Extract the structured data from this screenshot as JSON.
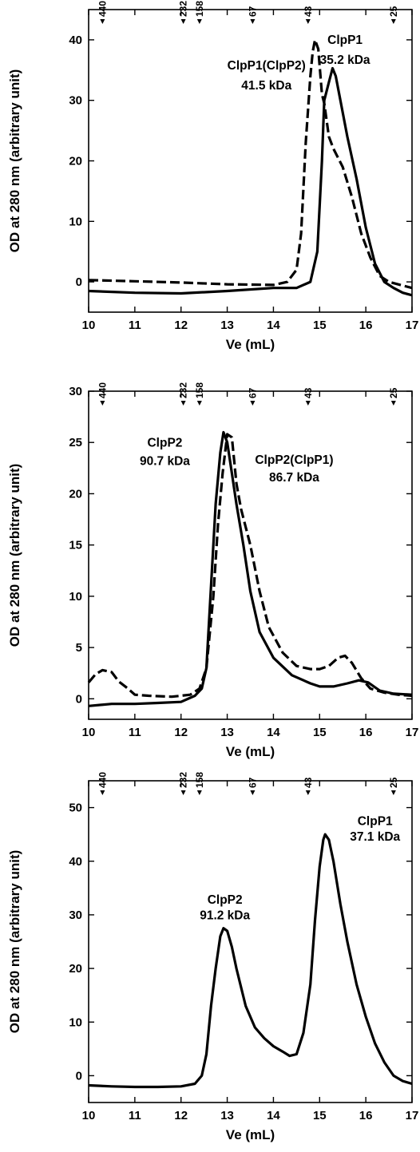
{
  "chart_data": [
    {
      "type": "line",
      "xlabel": "Ve (mL)",
      "ylabel": "OD at 280 nm (arbitrary unit)",
      "xlim": [
        10,
        17
      ],
      "ylim": [
        -5,
        45
      ],
      "x_ticks": [
        10,
        11,
        12,
        13,
        14,
        15,
        16,
        17
      ],
      "y_ticks": [
        0,
        10,
        20,
        30,
        40
      ],
      "markers": [
        {
          "x": 10.3,
          "label": "440"
        },
        {
          "x": 12.05,
          "label": "232"
        },
        {
          "x": 12.4,
          "label": "158"
        },
        {
          "x": 13.55,
          "label": "67"
        },
        {
          "x": 14.75,
          "label": "43"
        },
        {
          "x": 16.6,
          "label": "25"
        }
      ],
      "annotations": [
        {
          "text": "ClpP1(ClpP2)",
          "x": 13.85,
          "y": 35.1
        },
        {
          "text": "41.5 kDa",
          "x": 13.85,
          "y": 31.8
        },
        {
          "text": "ClpP1",
          "x": 15.55,
          "y": 39.3
        },
        {
          "text": "35.2 kDa",
          "x": 15.55,
          "y": 36.0
        }
      ],
      "series": [
        {
          "style": "dashed",
          "points": [
            [
              10,
              0.3
            ],
            [
              11,
              0.1
            ],
            [
              12,
              -0.1
            ],
            [
              13,
              -0.4
            ],
            [
              14,
              -0.5
            ],
            [
              14.3,
              0
            ],
            [
              14.5,
              2
            ],
            [
              14.6,
              8
            ],
            [
              14.7,
              23
            ],
            [
              14.8,
              34
            ],
            [
              14.85,
              38
            ],
            [
              14.9,
              40
            ],
            [
              14.97,
              38.5
            ],
            [
              15.05,
              31
            ],
            [
              15.1,
              29.5
            ],
            [
              15.2,
              24
            ],
            [
              15.3,
              22
            ],
            [
              15.5,
              19
            ],
            [
              15.7,
              14
            ],
            [
              15.9,
              8
            ],
            [
              16.1,
              4
            ],
            [
              16.3,
              1
            ],
            [
              16.5,
              0
            ],
            [
              16.75,
              -0.5
            ],
            [
              17,
              -1
            ]
          ]
        },
        {
          "style": "solid",
          "points": [
            [
              10,
              -1.5
            ],
            [
              11,
              -1.8
            ],
            [
              12,
              -1.9
            ],
            [
              13,
              -1.5
            ],
            [
              14,
              -1
            ],
            [
              14.5,
              -1
            ],
            [
              14.8,
              0
            ],
            [
              14.95,
              5
            ],
            [
              15.05,
              20
            ],
            [
              15.1,
              30
            ],
            [
              15.2,
              33
            ],
            [
              15.28,
              35.3
            ],
            [
              15.35,
              34
            ],
            [
              15.45,
              30
            ],
            [
              15.6,
              24
            ],
            [
              15.8,
              17
            ],
            [
              16,
              9
            ],
            [
              16.2,
              3
            ],
            [
              16.4,
              0
            ],
            [
              16.6,
              -1
            ],
            [
              16.8,
              -1.8
            ],
            [
              17,
              -2.2
            ]
          ]
        }
      ]
    },
    {
      "type": "line",
      "xlabel": "Ve (mL)",
      "ylabel": "OD at 280 nm (arbitrary unit)",
      "xlim": [
        10,
        17
      ],
      "ylim": [
        -2,
        30
      ],
      "x_ticks": [
        10,
        11,
        12,
        13,
        14,
        15,
        16,
        17
      ],
      "y_ticks": [
        0,
        5,
        10,
        15,
        20,
        25,
        30
      ],
      "markers": [
        {
          "x": 10.3,
          "label": "440"
        },
        {
          "x": 12.05,
          "label": "232"
        },
        {
          "x": 12.4,
          "label": "158"
        },
        {
          "x": 13.55,
          "label": "67"
        },
        {
          "x": 14.75,
          "label": "43"
        },
        {
          "x": 16.6,
          "label": "25"
        }
      ],
      "annotations": [
        {
          "text": "ClpP2",
          "x": 11.65,
          "y": 24.6
        },
        {
          "text": "90.7 kDa",
          "x": 11.65,
          "y": 22.8
        },
        {
          "text": "ClpP2(ClpP1)",
          "x": 14.45,
          "y": 22.9
        },
        {
          "text": "86.7 kDa",
          "x": 14.45,
          "y": 21.2
        }
      ],
      "series": [
        {
          "style": "dashed",
          "points": [
            [
              10,
              1.6
            ],
            [
              10.15,
              2.4
            ],
            [
              10.3,
              2.8
            ],
            [
              10.5,
              2.6
            ],
            [
              10.65,
              1.7
            ],
            [
              10.85,
              1
            ],
            [
              11,
              0.4
            ],
            [
              11.3,
              0.3
            ],
            [
              11.8,
              0.2
            ],
            [
              12.2,
              0.4
            ],
            [
              12.4,
              1
            ],
            [
              12.55,
              3
            ],
            [
              12.7,
              10
            ],
            [
              12.8,
              17
            ],
            [
              12.9,
              22
            ],
            [
              13,
              25.8
            ],
            [
              13.1,
              25.5
            ],
            [
              13.2,
              21
            ],
            [
              13.3,
              18.5
            ],
            [
              13.5,
              15
            ],
            [
              13.7,
              10.5
            ],
            [
              13.9,
              7
            ],
            [
              14.2,
              4.5
            ],
            [
              14.5,
              3.2
            ],
            [
              14.8,
              2.9
            ],
            [
              15,
              2.9
            ],
            [
              15.2,
              3.2
            ],
            [
              15.4,
              4
            ],
            [
              15.55,
              4.2
            ],
            [
              15.7,
              3.5
            ],
            [
              15.9,
              2
            ],
            [
              16.1,
              1
            ],
            [
              16.4,
              0.6
            ],
            [
              16.7,
              0.4
            ],
            [
              17,
              0.3
            ]
          ]
        },
        {
          "style": "solid",
          "points": [
            [
              10,
              -0.7
            ],
            [
              10.5,
              -0.5
            ],
            [
              11,
              -0.5
            ],
            [
              11.5,
              -0.4
            ],
            [
              12,
              -0.3
            ],
            [
              12.3,
              0.3
            ],
            [
              12.45,
              1
            ],
            [
              12.55,
              3
            ],
            [
              12.65,
              11
            ],
            [
              12.75,
              19
            ],
            [
              12.85,
              24
            ],
            [
              12.92,
              26
            ],
            [
              13,
              25
            ],
            [
              13.1,
              22
            ],
            [
              13.2,
              19
            ],
            [
              13.35,
              15
            ],
            [
              13.5,
              10.5
            ],
            [
              13.7,
              6.5
            ],
            [
              14,
              4
            ],
            [
              14.4,
              2.3
            ],
            [
              14.8,
              1.5
            ],
            [
              15,
              1.2
            ],
            [
              15.3,
              1.2
            ],
            [
              15.6,
              1.5
            ],
            [
              15.85,
              1.8
            ],
            [
              16.05,
              1.6
            ],
            [
              16.3,
              0.8
            ],
            [
              16.6,
              0.5
            ],
            [
              17,
              0.4
            ]
          ]
        }
      ]
    },
    {
      "type": "line",
      "xlabel": "Ve (mL)",
      "ylabel": "OD at 280 nm (arbitrary unit)",
      "xlim": [
        10,
        17
      ],
      "ylim": [
        -5,
        55
      ],
      "x_ticks": [
        10,
        11,
        12,
        13,
        14,
        15,
        16,
        17
      ],
      "y_ticks": [
        0,
        10,
        20,
        30,
        40,
        50
      ],
      "markers": [
        {
          "x": 10.3,
          "label": "440"
        },
        {
          "x": 12.05,
          "label": "232"
        },
        {
          "x": 12.4,
          "label": "158"
        },
        {
          "x": 13.55,
          "label": "67"
        },
        {
          "x": 14.75,
          "label": "43"
        },
        {
          "x": 16.6,
          "label": "25"
        }
      ],
      "annotations": [
        {
          "text": "ClpP2",
          "x": 12.95,
          "y": 32.1
        },
        {
          "text": "91.2 kDa",
          "x": 12.95,
          "y": 29.2
        },
        {
          "text": "ClpP1",
          "x": 16.2,
          "y": 46.7
        },
        {
          "text": "37.1 kDa",
          "x": 16.2,
          "y": 43.8
        }
      ],
      "series": [
        {
          "style": "solid",
          "points": [
            [
              10,
              -1.8
            ],
            [
              10.5,
              -2
            ],
            [
              11,
              -2.1
            ],
            [
              11.5,
              -2.1
            ],
            [
              12,
              -2
            ],
            [
              12.3,
              -1.5
            ],
            [
              12.45,
              0
            ],
            [
              12.55,
              4
            ],
            [
              12.65,
              13
            ],
            [
              12.75,
              20
            ],
            [
              12.85,
              26
            ],
            [
              12.92,
              27.5
            ],
            [
              13,
              27
            ],
            [
              13.1,
              24
            ],
            [
              13.2,
              20
            ],
            [
              13.4,
              13
            ],
            [
              13.6,
              9
            ],
            [
              13.8,
              7
            ],
            [
              14,
              5.5
            ],
            [
              14.2,
              4.5
            ],
            [
              14.35,
              3.7
            ],
            [
              14.5,
              4
            ],
            [
              14.65,
              8
            ],
            [
              14.8,
              17
            ],
            [
              14.9,
              29
            ],
            [
              15,
              39
            ],
            [
              15.08,
              44
            ],
            [
              15.12,
              45
            ],
            [
              15.2,
              44
            ],
            [
              15.3,
              40
            ],
            [
              15.45,
              32
            ],
            [
              15.6,
              25
            ],
            [
              15.8,
              17
            ],
            [
              16,
              11
            ],
            [
              16.2,
              6
            ],
            [
              16.4,
              2.5
            ],
            [
              16.6,
              0
            ],
            [
              16.8,
              -1
            ],
            [
              17,
              -1.5
            ]
          ]
        }
      ]
    }
  ]
}
